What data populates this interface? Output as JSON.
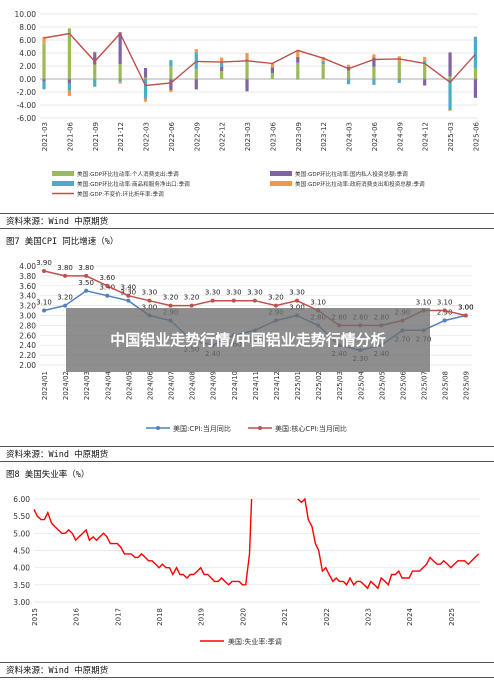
{
  "overlay_title": "中国铝业走势行情/中国铝业走势行情分析",
  "source_text": "资料来源：Wind 中原期货",
  "colors": {
    "consumption": "#9bbb59",
    "investment": "#8064a2",
    "exports": "#4bacc6",
    "government": "#f79646",
    "gdp_line": "#c0504d",
    "cpi": "#4f81bd",
    "core_cpi": "#c0504d",
    "unemployment": "#ff0000"
  },
  "chart_data": [
    {
      "type": "bar",
      "title": "",
      "categories": [
        "2021-03",
        "2021-06",
        "2021-09",
        "2021-12",
        "2022-03",
        "2022-06",
        "2022-09",
        "2022-12",
        "2023-03",
        "2023-06",
        "2023-09",
        "2023-12",
        "2024-03",
        "2024-06",
        "2024-09",
        "2024-12",
        "2025-03",
        "2025-06"
      ],
      "ylim": [
        -6,
        10
      ],
      "yticks": [
        "10.00",
        "8.00",
        "6.00",
        "4.00",
        "2.00",
        "0.00",
        "-2.00",
        "-4.00",
        "-6.00"
      ],
      "series": [
        {
          "name": "美国:GDP环比拉动率:个人消费支出:季调",
          "values": [
            5.5,
            7.8,
            2.2,
            2.3,
            0.2,
            2.0,
            1.5,
            1.2,
            2.8,
            0.9,
            2.5,
            2.3,
            1.3,
            1.9,
            2.5,
            2.5,
            0.4,
            1.7
          ]
        },
        {
          "name": "美国:GDP环比拉动率:国内私人投资总额:季调",
          "values": [
            -0.4,
            -0.7,
            1.9,
            4.9,
            1.5,
            -1.7,
            -1.6,
            0.7,
            -1.9,
            0.9,
            0.9,
            0.1,
            0.6,
            1.4,
            0.1,
            -1.0,
            3.7,
            -2.9
          ]
        },
        {
          "name": "美国:GDP环比拉动率:商品和服务净出口:季调",
          "values": [
            -1.2,
            -1.1,
            -1.2,
            -0.4,
            -3.0,
            0.9,
            2.6,
            0.6,
            0.3,
            0.0,
            -0.1,
            0.3,
            -0.8,
            -0.9,
            -0.6,
            0.3,
            -4.8,
            4.8
          ]
        },
        {
          "name": "美国:GDP环比拉动率:政府消费支出和投资总额:季调",
          "values": [
            1.0,
            -0.8,
            0.1,
            -0.3,
            -0.5,
            -0.3,
            0.5,
            0.8,
            0.9,
            0.6,
            1.0,
            0.7,
            0.3,
            0.5,
            0.9,
            0.6,
            -0.1,
            0.0
          ]
        },
        {
          "name": "美国:GDP:不变价:环比折年率:季调",
          "type": "line",
          "values": [
            6.3,
            7.0,
            2.7,
            7.0,
            -1.0,
            -0.6,
            2.7,
            2.6,
            2.8,
            2.4,
            4.4,
            3.2,
            1.6,
            3.0,
            3.1,
            2.4,
            -0.5,
            3.8
          ]
        }
      ]
    },
    {
      "type": "line",
      "title": "图7 美国CPI 同比增速（%）",
      "categories": [
        "2024/01",
        "2024/02",
        "2024/03",
        "2024/04",
        "2024/05",
        "2024/06",
        "2024/07",
        "2024/08",
        "2024/09",
        "2024/10",
        "2024/11",
        "2024/12",
        "2025/01",
        "2025/02",
        "2025/03",
        "2025/04",
        "2025/05",
        "2025/06",
        "2025/07",
        "2025/08",
        "2025/09"
      ],
      "ylim": [
        2.0,
        4.0
      ],
      "yticks": [
        "4.00",
        "3.80",
        "3.60",
        "3.40",
        "3.20",
        "3.00",
        "2.80",
        "2.60",
        "2.40",
        "2.20",
        "2.00"
      ],
      "series": [
        {
          "name": "美国:CPI:当月同比",
          "values": [
            3.1,
            3.2,
            3.5,
            3.4,
            3.3,
            3.0,
            2.9,
            2.5,
            2.4,
            2.6,
            2.7,
            2.9,
            3.0,
            2.8,
            2.4,
            2.3,
            2.4,
            2.7,
            2.7,
            2.9,
            3.0
          ]
        },
        {
          "name": "美国:核心CPI:当月同比",
          "values": [
            3.9,
            3.8,
            3.8,
            3.6,
            3.4,
            3.3,
            3.2,
            3.2,
            3.3,
            3.3,
            3.3,
            3.2,
            3.3,
            3.1,
            2.8,
            2.8,
            2.8,
            2.9,
            3.1,
            3.1,
            3.0
          ]
        }
      ],
      "labels_cpi": [
        "3.10",
        "3.20",
        "3.50",
        "3.40",
        "3.30",
        "3.00",
        "2.90",
        "2.50",
        "2.40",
        "2.60",
        "2.70",
        "2.90",
        "3.00",
        "2.80",
        "2.40",
        "2.30",
        "2.40",
        "2.70",
        "2.70",
        "2.90",
        "3.00"
      ],
      "labels_core": [
        "3.90",
        "3.80",
        "3.80",
        "3.60",
        "3.40",
        "3.30",
        "3.20",
        "3.20",
        "3.30",
        "3.30",
        "3.30",
        "3.20",
        "3.30",
        "3.10",
        "2.80",
        "2.80",
        "2.80",
        "2.90",
        "3.10",
        "3.10",
        "3.00"
      ]
    },
    {
      "type": "line",
      "title": "图8 美国失业率（%）",
      "categories": [
        "2015",
        "2016",
        "2017",
        "2018",
        "2019",
        "2020",
        "2021",
        "2022",
        "2023",
        "2024",
        "2025"
      ],
      "ylim": [
        3.0,
        6.0
      ],
      "yticks": [
        "6.00",
        "5.50",
        "5.00",
        "4.50",
        "4.00",
        "3.50",
        "3.00"
      ],
      "series": [
        {
          "name": "美国:失业率:季调",
          "segments": [
            {
              "x": [
                2015.0,
                2015.08,
                2015.17,
                2015.25,
                2015.33,
                2015.42,
                2015.5,
                2015.58,
                2015.67,
                2015.75,
                2015.83,
                2015.92,
                2016.0,
                2016.08,
                2016.17,
                2016.25,
                2016.33,
                2016.42,
                2016.5,
                2016.58,
                2016.67,
                2016.75,
                2016.83,
                2016.92,
                2017.0,
                2017.08,
                2017.17,
                2017.25,
                2017.33,
                2017.42,
                2017.5,
                2017.58,
                2017.67,
                2017.75,
                2017.83,
                2017.92,
                2018.0,
                2018.08,
                2018.17,
                2018.25,
                2018.33,
                2018.42,
                2018.5,
                2018.58,
                2018.67,
                2018.75,
                2018.83,
                2018.92,
                2019.0,
                2019.08,
                2019.17,
                2019.25,
                2019.33,
                2019.42,
                2019.5,
                2019.58,
                2019.67,
                2019.75,
                2019.83,
                2019.92,
                2020.0,
                2020.08,
                2020.17,
                2020.22
              ],
              "y": [
                5.7,
                5.5,
                5.4,
                5.4,
                5.6,
                5.3,
                5.2,
                5.1,
                5.0,
                5.0,
                5.1,
                5.0,
                4.8,
                4.9,
                5.0,
                5.1,
                4.8,
                4.9,
                4.8,
                4.9,
                5.0,
                4.9,
                4.7,
                4.7,
                4.7,
                4.6,
                4.4,
                4.4,
                4.4,
                4.3,
                4.3,
                4.4,
                4.3,
                4.2,
                4.2,
                4.1,
                4.0,
                4.1,
                4.0,
                4.0,
                3.8,
                4.0,
                3.8,
                3.8,
                3.7,
                3.8,
                3.8,
                3.9,
                4.0,
                3.8,
                3.8,
                3.7,
                3.6,
                3.6,
                3.7,
                3.6,
                3.5,
                3.6,
                3.6,
                3.6,
                3.5,
                3.5,
                4.4,
                6.0
              ]
            },
            {
              "x": [
                2021.33,
                2021.42,
                2021.5,
                2021.58,
                2021.67,
                2021.75,
                2021.83,
                2021.92,
                2022.0,
                2022.08,
                2022.17,
                2022.25,
                2022.33,
                2022.42,
                2022.5,
                2022.58,
                2022.67,
                2022.75,
                2022.83,
                2022.92,
                2023.0,
                2023.08,
                2023.17,
                2023.25,
                2023.33,
                2023.42,
                2023.5,
                2023.58,
                2023.67,
                2023.75,
                2023.83,
                2023.92,
                2024.0,
                2024.08,
                2024.17,
                2024.25,
                2024.33,
                2024.42,
                2024.5,
                2024.58,
                2024.67,
                2024.75,
                2024.83,
                2024.92,
                2025.0,
                2025.08,
                2025.17,
                2025.25,
                2025.33,
                2025.42,
                2025.5,
                2025.58,
                2025.67
              ],
              "y": [
                6.0,
                5.9,
                6.0,
                5.4,
                5.2,
                4.7,
                4.5,
                3.9,
                4.0,
                3.8,
                3.6,
                3.7,
                3.6,
                3.6,
                3.5,
                3.7,
                3.5,
                3.6,
                3.6,
                3.5,
                3.4,
                3.6,
                3.5,
                3.4,
                3.7,
                3.6,
                3.5,
                3.8,
                3.8,
                3.9,
                3.7,
                3.7,
                3.7,
                3.9,
                3.9,
                3.9,
                4.0,
                4.1,
                4.3,
                4.2,
                4.1,
                4.1,
                4.2,
                4.1,
                4.0,
                4.1,
                4.2,
                4.2,
                4.2,
                4.1,
                4.2,
                4.3,
                4.4
              ]
            }
          ]
        }
      ]
    }
  ]
}
